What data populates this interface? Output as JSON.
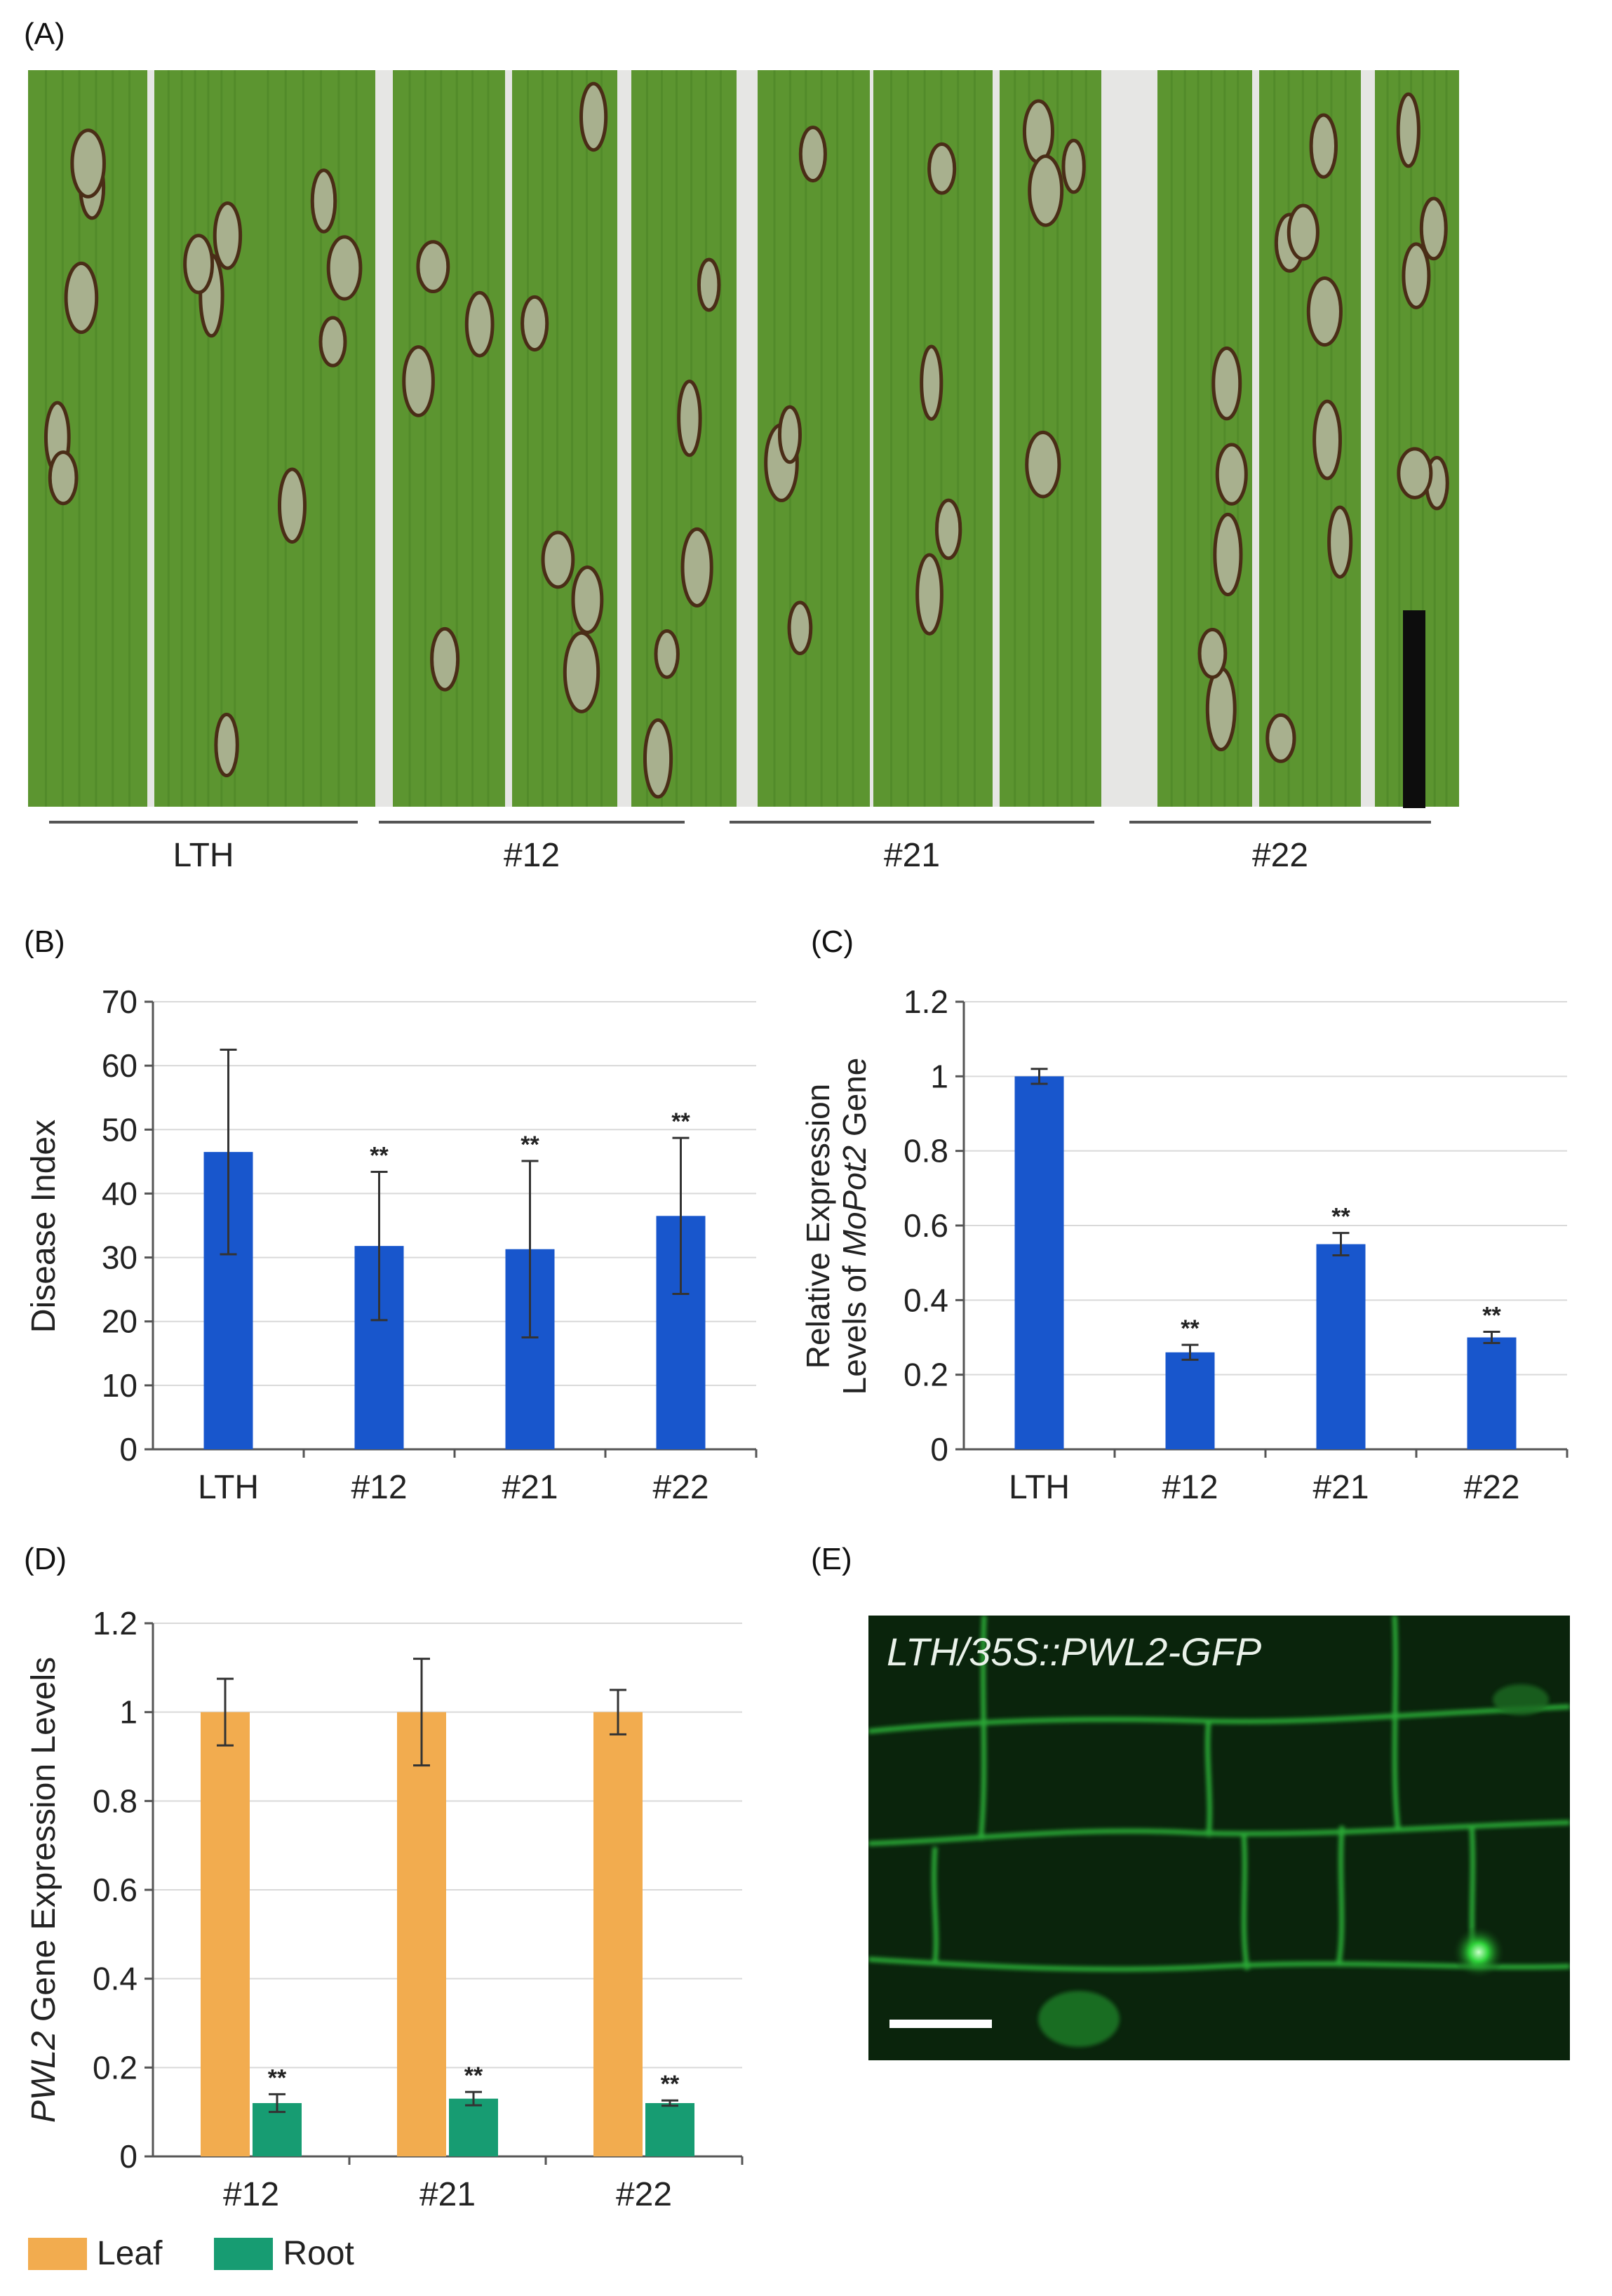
{
  "panels": {
    "A": "(A)",
    "B": "(B)",
    "C": "(C)",
    "D": "(D)",
    "E": "(E)"
  },
  "panelA": {
    "groups": [
      "LTH",
      "#12",
      "#21",
      "#22"
    ]
  },
  "panelE": {
    "label": "LTH/35S::PWL2-GFP"
  },
  "colors": {
    "bar_blue": "#1856cc",
    "leaf": "#f2ac4f",
    "root": "#179c72",
    "leaf_bg": "#5c9530",
    "gfp": "#2fd23a"
  },
  "chart_data": [
    {
      "panel": "B",
      "type": "bar",
      "categories": [
        "LTH",
        "#12",
        "#21",
        "#22"
      ],
      "values": [
        46.5,
        31.8,
        31.3,
        36.5
      ],
      "errors": [
        16.0,
        11.6,
        13.8,
        12.2
      ],
      "significance": [
        "",
        "**",
        "**",
        "**"
      ],
      "ylabel": "Disease Index",
      "ylim": [
        0,
        70
      ],
      "yticks": [
        "0",
        "10",
        "20",
        "30",
        "40",
        "50",
        "60",
        "70"
      ],
      "grid": true
    },
    {
      "panel": "C",
      "type": "bar",
      "categories": [
        "LTH",
        "#12",
        "#21",
        "#22"
      ],
      "values": [
        1.0,
        0.26,
        0.55,
        0.3
      ],
      "errors": [
        0.02,
        0.02,
        0.03,
        0.015
      ],
      "significance": [
        "",
        "**",
        "**",
        "**"
      ],
      "ylabel_line1": "Relative Expression",
      "ylabel_line2_prefix": "Levels of ",
      "ylabel_line2_italic": "MoPot2",
      "ylabel_line2_suffix": " Gene",
      "ylim": [
        0,
        1.2
      ],
      "yticks": [
        "0",
        "0.2",
        "0.4",
        "0.6",
        "0.8",
        "1",
        "1.2"
      ],
      "grid": true
    },
    {
      "panel": "D",
      "type": "bar",
      "categories": [
        "#12",
        "#21",
        "#22"
      ],
      "series": [
        {
          "name": "Leaf",
          "values": [
            1.0,
            1.0,
            1.0
          ],
          "errors": [
            0.075,
            0.12,
            0.05
          ]
        },
        {
          "name": "Root",
          "values": [
            0.12,
            0.13,
            0.12
          ],
          "errors": [
            0.02,
            0.015,
            0.006
          ]
        }
      ],
      "significance": [
        "**",
        "**",
        "**"
      ],
      "ylabel_italic": "PWL2",
      "ylabel_rest": " Gene Expression Levels",
      "ylim": [
        0,
        1.2
      ],
      "yticks": [
        "0",
        "0.2",
        "0.4",
        "0.6",
        "0.8",
        "1",
        "1.2"
      ],
      "grid": true,
      "legend": "bottom-left"
    }
  ]
}
